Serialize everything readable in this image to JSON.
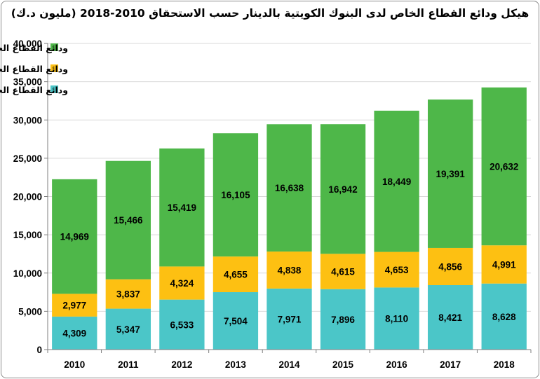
{
  "chart_data": {
    "type": "bar",
    "stacked": true,
    "title": "هيكل ودائع القطاع الخاص لدى البنوك الكويتية بالدينار حسب الاستحقاق 2010-2018 (مليون د.ك)",
    "categories": [
      "2010",
      "2011",
      "2012",
      "2013",
      "2014",
      "2015",
      "2016",
      "2017",
      "2018"
    ],
    "series": [
      {
        "name": "ودائع القطاع الخاص تحت الطلب بالدينار (مليون د.ك.)",
        "values": [
          4309,
          5347,
          6533,
          7504,
          7971,
          7896,
          8110,
          8421,
          8628
        ],
        "labels": [
          "4,309",
          "5,347",
          "6,533",
          "7,504",
          "7,971",
          "7,896",
          "8,110",
          "8,421",
          "8,628"
        ],
        "color": "#4BC6C8"
      },
      {
        "name": "ودائع القطاع الخاص مدخرات بالدينار(مليون د.ك.)",
        "values": [
          2977,
          3837,
          4324,
          4655,
          4838,
          4615,
          4653,
          4856,
          4991
        ],
        "labels": [
          "2,977",
          "3,837",
          "4,324",
          "4,655",
          "4,838",
          "4,615",
          "4,653",
          "4,856",
          "4,991"
        ],
        "color": "#FDC012"
      },
      {
        "name": "ودائع القطاع الخاص لاجل بالدينار(مليون د.ك.)",
        "values": [
          14969,
          15466,
          15419,
          16105,
          16638,
          16942,
          18449,
          19391,
          20632
        ],
        "labels": [
          "14,969",
          "15,466",
          "15,419",
          "16,105",
          "16,638",
          "16,942",
          "18,449",
          "19,391",
          "20,632"
        ],
        "color": "#4EB749"
      }
    ],
    "ylim": [
      0,
      40000
    ],
    "yticks": [
      "0",
      "5,000",
      "10,000",
      "15,000",
      "20,000",
      "25,000",
      "30,000",
      "35,000",
      "40,000"
    ],
    "xlabel": "",
    "ylabel": "",
    "grid": true,
    "legend_position": "top-left"
  }
}
